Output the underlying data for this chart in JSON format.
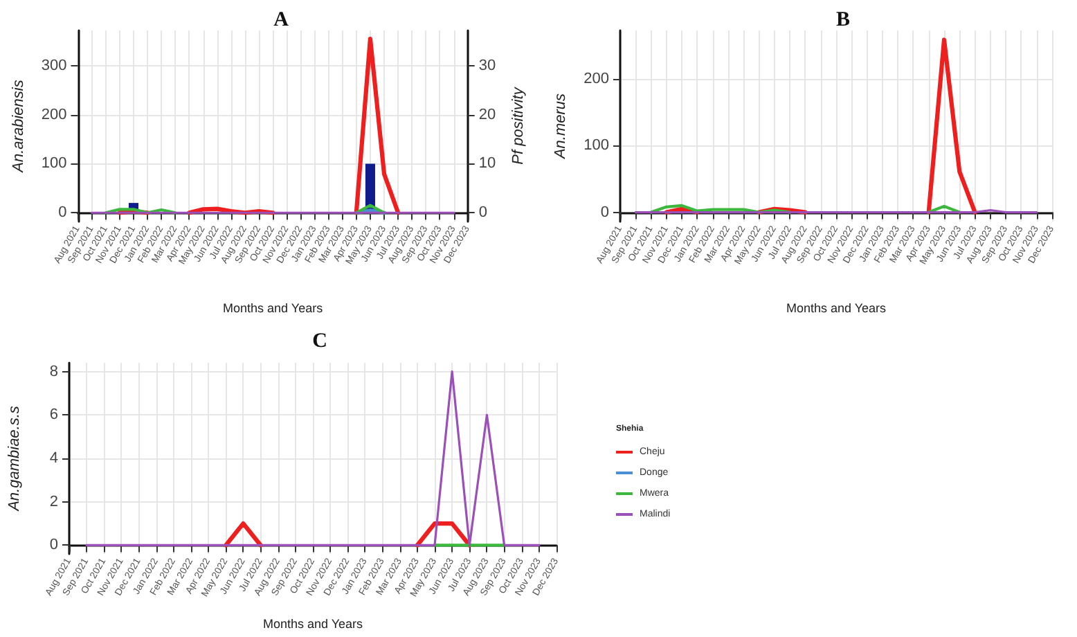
{
  "chart_data": [
    {
      "type": "line",
      "title": "A",
      "xlabel": "Months and Years",
      "ylabel": "An.arabiensis",
      "y2label": "Pf positivity",
      "categories": [
        "Aug 2021",
        "Sep 2021",
        "Oct 2021",
        "Nov 2021",
        "Dec 2021",
        "Jan 2022",
        "Feb 2022",
        "Mar 2022",
        "Apr 2022",
        "May 2022",
        "Jun 2022",
        "Jul 2022",
        "Aug 2022",
        "Sep 2022",
        "Oct 2022",
        "Nov 2022",
        "Dec 2022",
        "Jan 2023",
        "Feb 2023",
        "Mar 2023",
        "Apr 2023",
        "May 2023",
        "Jun 2023",
        "Jul 2023",
        "Aug 2023",
        "Sep 2023",
        "Oct 2023",
        "Nov 2023",
        "Dec 2023"
      ],
      "series": [
        {
          "type": "bar",
          "axis": "y2",
          "color": "#101c8c",
          "values": [
            null,
            0,
            0,
            0,
            2,
            0,
            0,
            0,
            0,
            0,
            0,
            0,
            0,
            0,
            0,
            0,
            0,
            0,
            0,
            0,
            0,
            10,
            0,
            0,
            0,
            0,
            0,
            0,
            null
          ]
        },
        {
          "color": "#ee1f1f",
          "values": [
            null,
            null,
            null,
            0,
            3,
            0,
            null,
            null,
            0,
            7,
            8,
            3,
            0,
            3,
            0,
            null,
            null,
            null,
            null,
            null,
            0,
            355,
            79,
            0,
            null,
            null,
            null,
            null,
            null
          ]
        },
        {
          "color": "#4a8fd6",
          "values": [
            null,
            null,
            null,
            null,
            null,
            null,
            null,
            null,
            null,
            null,
            null,
            null,
            null,
            null,
            null,
            null,
            null,
            null,
            null,
            null,
            0,
            5,
            0,
            null,
            null,
            null,
            null,
            null,
            null
          ]
        },
        {
          "color": "#3cb83c",
          "values": [
            null,
            null,
            0,
            7,
            7,
            0,
            6,
            0,
            null,
            null,
            null,
            null,
            null,
            null,
            null,
            null,
            null,
            null,
            null,
            null,
            0,
            15,
            0,
            null,
            null,
            null,
            null,
            null,
            null
          ]
        },
        {
          "color": "#9b4fb8",
          "values": [
            null,
            0,
            0,
            0,
            0,
            0,
            0,
            0,
            0,
            0,
            0,
            0,
            0,
            0,
            0,
            0,
            0,
            0,
            0,
            0,
            0,
            0,
            0,
            0,
            0,
            0,
            0,
            0,
            null
          ]
        }
      ],
      "ylim": [
        -18,
        372
      ],
      "yticks": [
        0,
        100,
        200,
        300
      ],
      "y2lim": [
        -1.8,
        37.2
      ],
      "y2ticks": [
        0,
        10,
        20,
        30
      ],
      "grid": true,
      "marker": "none",
      "line_style": "solid"
    },
    {
      "type": "line",
      "title": "B",
      "xlabel": "Months and Years",
      "ylabel": "An.merus",
      "categories": [
        "Aug 2021",
        "Sep 2021",
        "Oct 2021",
        "Nov 2021",
        "Dec 2021",
        "Jan 2022",
        "Feb 2022",
        "Mar 2022",
        "Apr 2022",
        "May 2022",
        "Jun 2022",
        "Jul 2022",
        "Aug 2022",
        "Sep 2022",
        "Oct 2022",
        "Nov 2022",
        "Dec 2022",
        "Jan 2023",
        "Feb 2023",
        "Mar 2023",
        "Apr 2023",
        "May 2023",
        "Jun 2023",
        "Jul 2023",
        "Aug 2023",
        "Sep 2023",
        "Oct 2023",
        "Nov 2023",
        "Dec 2023"
      ],
      "series": [
        {
          "color": "#ee1f1f",
          "values": [
            null,
            null,
            null,
            0,
            5,
            0,
            null,
            null,
            null,
            0,
            5,
            3,
            0,
            null,
            null,
            null,
            null,
            null,
            null,
            null,
            0,
            259,
            61,
            0,
            null,
            null,
            null,
            null,
            null
          ]
        },
        {
          "color": "#4a8fd6",
          "values": [
            null,
            null,
            null,
            null,
            null,
            null,
            null,
            null,
            null,
            null,
            null,
            null,
            null,
            null,
            null,
            null,
            null,
            null,
            null,
            null,
            null,
            null,
            null,
            null,
            null,
            null,
            null,
            null,
            null
          ]
        },
        {
          "color": "#3cb83c",
          "values": [
            null,
            null,
            0,
            8,
            10,
            2,
            4,
            4,
            4,
            0,
            3,
            0,
            null,
            null,
            null,
            null,
            null,
            null,
            null,
            null,
            0,
            9,
            0,
            null,
            null,
            null,
            null,
            null,
            null
          ]
        },
        {
          "color": "#9b4fb8",
          "values": [
            null,
            0,
            0,
            0,
            0,
            0,
            0,
            0,
            0,
            0,
            0,
            0,
            0,
            0,
            0,
            0,
            0,
            0,
            0,
            0,
            0,
            0,
            0,
            0,
            3,
            0,
            0,
            0,
            null
          ]
        }
      ],
      "ylim": [
        -14,
        273
      ],
      "yticks": [
        0,
        100,
        200
      ],
      "grid": true,
      "marker": "none",
      "line_style": "solid"
    },
    {
      "type": "line",
      "title": "C",
      "xlabel": "Months and Years",
      "ylabel": "An.gambiae.s.s",
      "legend_title": "Shehia",
      "legend": "right",
      "categories": [
        "Aug 2021",
        "Sep 2021",
        "Oct 2021",
        "Nov 2021",
        "Dec 2021",
        "Jan 2022",
        "Feb 2022",
        "Mar 2022",
        "Apr 2022",
        "May 2022",
        "Jun 2022",
        "Jul 2022",
        "Aug 2022",
        "Sep 2022",
        "Oct 2022",
        "Nov 2022",
        "Dec 2022",
        "Jan 2023",
        "Feb 2023",
        "Mar 2023",
        "Apr 2023",
        "May 2023",
        "Jun 2023",
        "Jul 2023",
        "Aug 2023",
        "Sep 2023",
        "Oct 2023",
        "Nov 2023",
        "Dec 2023"
      ],
      "series": [
        {
          "name": "Cheju",
          "color": "#ee1f1f",
          "values": [
            null,
            null,
            null,
            null,
            null,
            null,
            null,
            null,
            null,
            0,
            1,
            0,
            null,
            null,
            null,
            null,
            null,
            null,
            null,
            null,
            0,
            1,
            1,
            0,
            null,
            null,
            null,
            null,
            null
          ]
        },
        {
          "name": "Donge",
          "color": "#4a8fd6",
          "values": [
            null,
            null,
            null,
            null,
            null,
            null,
            null,
            null,
            null,
            null,
            null,
            null,
            null,
            null,
            null,
            null,
            null,
            null,
            null,
            null,
            null,
            null,
            null,
            null,
            null,
            null,
            null,
            null,
            null
          ]
        },
        {
          "name": "Mwera",
          "color": "#3cb83c",
          "values": [
            null,
            null,
            null,
            null,
            null,
            null,
            null,
            null,
            null,
            null,
            null,
            null,
            null,
            null,
            null,
            null,
            null,
            null,
            null,
            null,
            null,
            0,
            0,
            0,
            0,
            0,
            null,
            null,
            null
          ]
        },
        {
          "name": "Malindi",
          "color": "#9b4fb8",
          "values": [
            null,
            0,
            0,
            0,
            0,
            0,
            0,
            0,
            0,
            0,
            0,
            0,
            0,
            0,
            0,
            0,
            0,
            0,
            0,
            0,
            0,
            0,
            8,
            0,
            6,
            0,
            0,
            0,
            null
          ]
        }
      ],
      "ylim": [
        -0.4,
        8.4
      ],
      "yticks": [
        0,
        2,
        4,
        6,
        8
      ],
      "grid": true,
      "marker": "none",
      "line_style": "solid"
    }
  ]
}
